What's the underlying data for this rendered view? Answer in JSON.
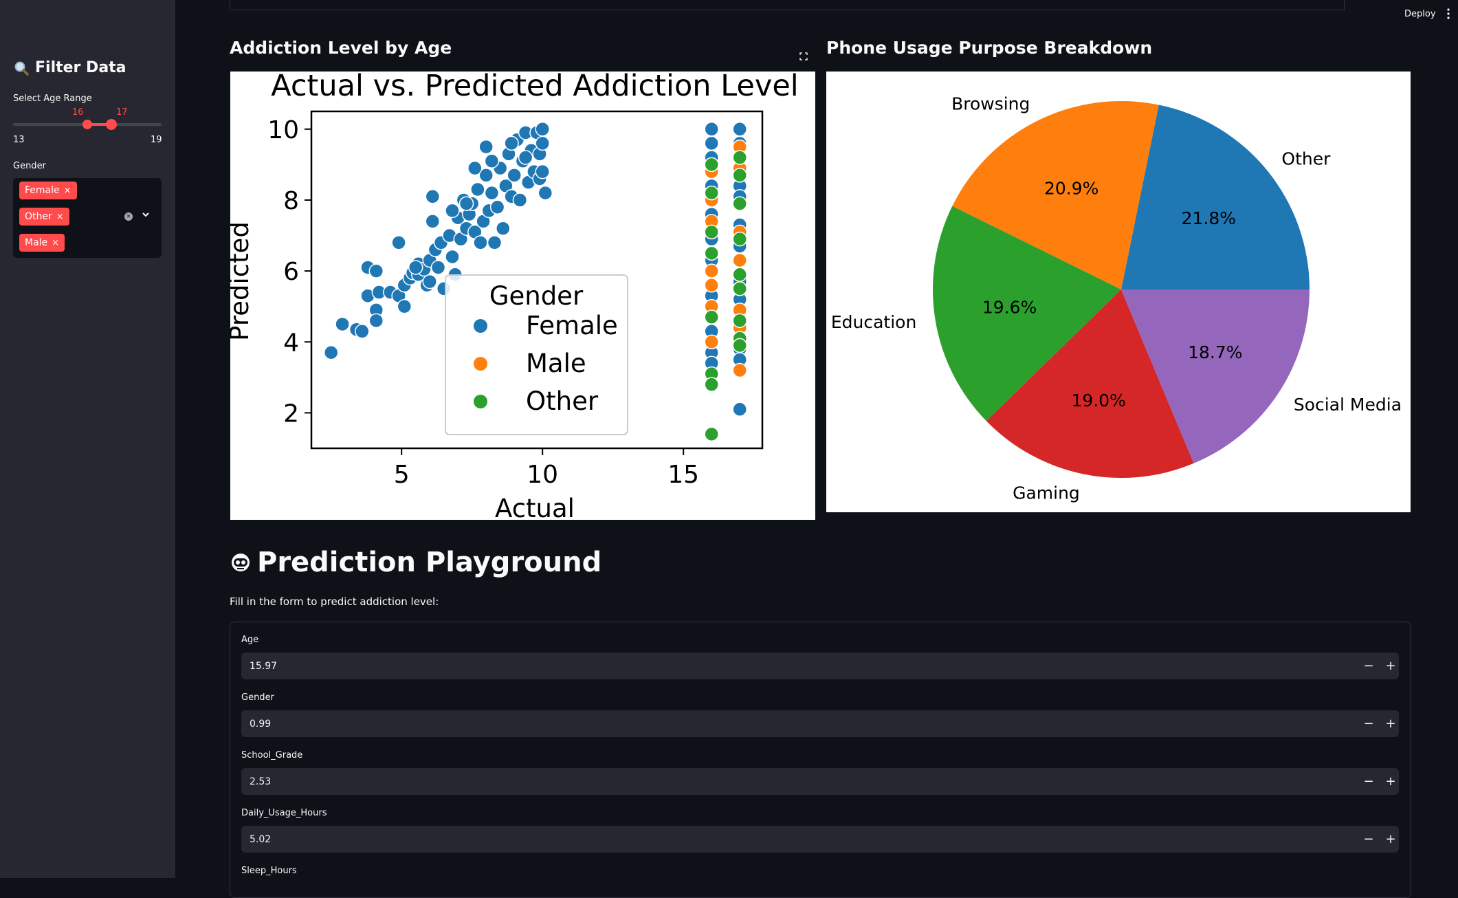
{
  "sidebar": {
    "title": "Filter Data",
    "age_label": "Select Age Range",
    "age_min": "13",
    "age_max": "19",
    "age_low": "16",
    "age_high": "17",
    "gender_label": "Gender",
    "gender_chips": [
      "Female",
      "Other",
      "Male"
    ],
    "chip_remove_glyph": "×"
  },
  "header": {
    "deploy": "Deploy"
  },
  "main": {
    "left_heading": "Addiction Level by Age",
    "right_heading": "Phone Usage Purpose Breakdown",
    "playground_title": "Prediction Playground",
    "playground_caption": "Fill in the form to predict addiction level:",
    "fields": [
      {
        "label": "Age",
        "value": "15.97"
      },
      {
        "label": "Gender",
        "value": "0.99"
      },
      {
        "label": "School_Grade",
        "value": "2.53"
      },
      {
        "label": "Daily_Usage_Hours",
        "value": "5.02"
      },
      {
        "label": "Sleep_Hours",
        "value": ""
      }
    ],
    "minus": "−",
    "plus": "+"
  },
  "colors": {
    "accent": "#ff4b4b",
    "bg": "#0e1117",
    "sidebar_bg": "#262730",
    "female": "#1f77b4",
    "male": "#ff7f0e",
    "other": "#2ca02c"
  },
  "chart_data": [
    {
      "type": "scatter",
      "title": "Actual vs. Predicted Addiction Level",
      "xlabel": "Actual",
      "ylabel": "Predicted",
      "xlim": [
        1.8,
        17.8
      ],
      "ylim": [
        1.0,
        10.5
      ],
      "xticks": [
        5,
        10,
        15
      ],
      "yticks": [
        2,
        4,
        6,
        8,
        10
      ],
      "legend": {
        "title": "Gender",
        "placement": "lower-center",
        "entries": [
          "Female",
          "Male",
          "Other"
        ]
      },
      "series": [
        {
          "name": "Female",
          "points": [
            [
              2.5,
              3.7
            ],
            [
              2.9,
              4.5
            ],
            [
              3.4,
              4.35
            ],
            [
              3.6,
              4.3
            ],
            [
              3.8,
              5.3
            ],
            [
              3.8,
              6.1
            ],
            [
              4.1,
              6.0
            ],
            [
              4.1,
              4.9
            ],
            [
              4.1,
              4.6
            ],
            [
              4.2,
              5.4
            ],
            [
              4.6,
              5.4
            ],
            [
              4.9,
              5.3
            ],
            [
              5.1,
              5.6
            ],
            [
              5.1,
              5.0
            ],
            [
              5.3,
              5.8
            ],
            [
              5.4,
              5.95
            ],
            [
              5.6,
              5.9
            ],
            [
              5.6,
              6.2
            ],
            [
              5.8,
              6.05
            ],
            [
              5.9,
              5.6
            ],
            [
              6.0,
              6.3
            ],
            [
              6.1,
              7.4
            ],
            [
              6.3,
              6.1
            ],
            [
              6.5,
              5.5
            ],
            [
              6.2,
              6.6
            ],
            [
              6.1,
              8.1
            ],
            [
              6.4,
              6.8
            ],
            [
              6.7,
              7.0
            ],
            [
              6.8,
              6.4
            ],
            [
              6.9,
              5.9
            ],
            [
              7.0,
              7.5
            ],
            [
              7.1,
              6.9
            ],
            [
              7.2,
              8.0
            ],
            [
              7.3,
              7.2
            ],
            [
              7.4,
              7.6
            ],
            [
              7.5,
              7.9
            ],
            [
              7.6,
              7.1
            ],
            [
              7.7,
              8.3
            ],
            [
              7.8,
              6.8
            ],
            [
              7.9,
              7.4
            ],
            [
              8.0,
              8.7
            ],
            [
              8.0,
              9.5
            ],
            [
              8.1,
              7.7
            ],
            [
              8.2,
              8.2
            ],
            [
              8.3,
              6.8
            ],
            [
              8.4,
              7.8
            ],
            [
              8.5,
              8.9
            ],
            [
              8.6,
              7.2
            ],
            [
              8.7,
              8.4
            ],
            [
              8.8,
              9.3
            ],
            [
              8.9,
              8.1
            ],
            [
              9.0,
              8.7
            ],
            [
              9.1,
              9.7
            ],
            [
              9.2,
              8.0
            ],
            [
              9.3,
              9.1
            ],
            [
              9.4,
              9.9
            ],
            [
              9.5,
              8.5
            ],
            [
              9.6,
              9.4
            ],
            [
              9.7,
              8.8
            ],
            [
              9.8,
              9.9
            ],
            [
              9.9,
              9.3
            ],
            [
              10.0,
              10.0
            ],
            [
              10.1,
              8.2
            ],
            [
              10.0,
              9.6
            ],
            [
              9.9,
              8.6
            ],
            [
              8.2,
              9.1
            ],
            [
              7.6,
              8.9
            ],
            [
              6.0,
              5.7
            ],
            [
              4.9,
              6.8
            ],
            [
              5.5,
              6.1
            ],
            [
              9.4,
              9.2
            ],
            [
              8.9,
              9.6
            ],
            [
              10.0,
              8.8
            ],
            [
              7.3,
              7.9
            ],
            [
              6.8,
              7.7
            ],
            [
              16,
              10.0
            ],
            [
              16,
              9.6
            ],
            [
              16,
              9.2
            ],
            [
              16,
              8.4
            ],
            [
              16,
              7.6
            ],
            [
              16,
              6.9
            ],
            [
              16,
              6.3
            ],
            [
              16,
              5.3
            ],
            [
              16,
              4.3
            ],
            [
              16,
              3.7
            ],
            [
              16,
              3.4
            ],
            [
              17,
              10.0
            ],
            [
              17,
              9.6
            ],
            [
              17,
              8.4
            ],
            [
              17,
              8.1
            ],
            [
              17,
              7.3
            ],
            [
              17,
              6.7
            ],
            [
              17,
              5.7
            ],
            [
              17,
              5.2
            ],
            [
              17,
              3.8
            ],
            [
              17,
              3.5
            ],
            [
              17,
              2.1
            ]
          ]
        },
        {
          "name": "Male",
          "points": [
            [
              16,
              8.8
            ],
            [
              16,
              8.0
            ],
            [
              16,
              7.4
            ],
            [
              16,
              6.0
            ],
            [
              16,
              5.6
            ],
            [
              16,
              5.0
            ],
            [
              16,
              4.0
            ],
            [
              17,
              9.5
            ],
            [
              17,
              8.9
            ],
            [
              17,
              7.1
            ],
            [
              17,
              6.3
            ],
            [
              17,
              4.9
            ],
            [
              17,
              4.4
            ],
            [
              17,
              3.2
            ]
          ]
        },
        {
          "name": "Other",
          "points": [
            [
              16,
              9.0
            ],
            [
              16,
              8.2
            ],
            [
              16,
              7.1
            ],
            [
              16,
              6.5
            ],
            [
              16,
              4.7
            ],
            [
              16,
              3.1
            ],
            [
              16,
              2.8
            ],
            [
              16,
              1.4
            ],
            [
              17,
              9.2
            ],
            [
              17,
              8.7
            ],
            [
              17,
              7.9
            ],
            [
              17,
              6.9
            ],
            [
              17,
              5.9
            ],
            [
              17,
              5.5
            ],
            [
              17,
              4.6
            ],
            [
              17,
              4.1
            ],
            [
              17,
              3.9
            ]
          ]
        }
      ]
    },
    {
      "type": "pie",
      "title": "",
      "start_angle_deg": 0,
      "direction": "counterclockwise",
      "slices": [
        {
          "label": "Other",
          "value": 21.8,
          "pct": "21.8%",
          "color": "#1f77b4"
        },
        {
          "label": "Browsing",
          "value": 20.9,
          "pct": "20.9%",
          "color": "#ff7f0e"
        },
        {
          "label": "Education",
          "value": 19.6,
          "pct": "19.6%",
          "color": "#2ca02c"
        },
        {
          "label": "Gaming",
          "value": 19.0,
          "pct": "19.0%",
          "color": "#d62728"
        },
        {
          "label": "Social Media",
          "value": 18.7,
          "pct": "18.7%",
          "color": "#9467bd"
        }
      ]
    }
  ]
}
